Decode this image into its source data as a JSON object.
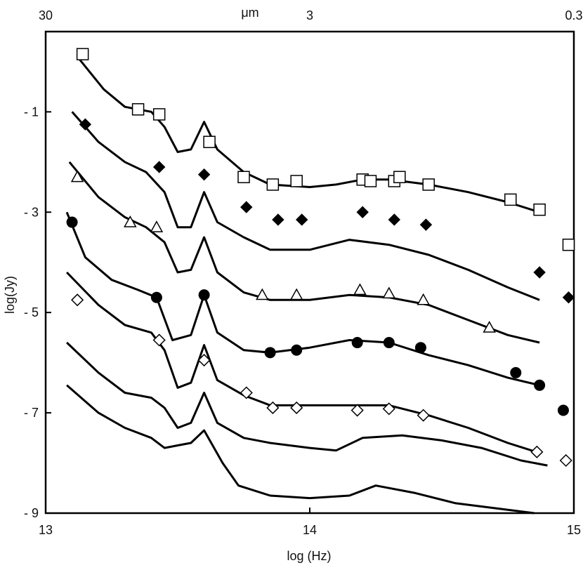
{
  "chart_data": {
    "type": "line",
    "xlabel": "log (Hz)",
    "ylabel": "log(Jy)",
    "top_axis_label": "μm",
    "xlim": [
      13,
      15
    ],
    "ylim": [
      -9.0,
      0.6
    ],
    "x_ticks": [
      13,
      14,
      15
    ],
    "y_ticks": [
      -1,
      -3,
      -5,
      -7,
      -9
    ],
    "y_tick_labels": [
      "- 1",
      "- 3",
      "- 5",
      "- 7",
      "- 9"
    ],
    "top_ticks": [
      {
        "label": "30",
        "x": 13.0
      },
      {
        "label": "3",
        "x": 14.0
      },
      {
        "label": "0.3",
        "x": 15.0
      }
    ],
    "series": [
      {
        "marker": "square",
        "curve": [
          [
            13.12,
            0.1
          ],
          [
            13.22,
            -0.55
          ],
          [
            13.3,
            -0.9
          ],
          [
            13.4,
            -1.0
          ],
          [
            13.45,
            -1.3
          ],
          [
            13.5,
            -1.8
          ],
          [
            13.55,
            -1.75
          ],
          [
            13.6,
            -1.2
          ],
          [
            13.65,
            -1.75
          ],
          [
            13.75,
            -2.2
          ],
          [
            13.85,
            -2.45
          ],
          [
            14.0,
            -2.5
          ],
          [
            14.1,
            -2.45
          ],
          [
            14.2,
            -2.35
          ],
          [
            14.3,
            -2.35
          ],
          [
            14.45,
            -2.45
          ],
          [
            14.6,
            -2.6
          ],
          [
            14.75,
            -2.8
          ],
          [
            14.87,
            -3.0
          ]
        ],
        "points": [
          [
            13.14,
            0.15
          ],
          [
            13.35,
            -0.95
          ],
          [
            13.43,
            -1.05
          ],
          [
            13.62,
            -1.6
          ],
          [
            13.75,
            -2.3
          ],
          [
            13.86,
            -2.45
          ],
          [
            13.95,
            -2.38
          ],
          [
            14.2,
            -2.35
          ],
          [
            14.23,
            -2.38
          ],
          [
            14.32,
            -2.38
          ],
          [
            14.34,
            -2.3
          ],
          [
            14.45,
            -2.45
          ],
          [
            14.76,
            -2.75
          ],
          [
            14.87,
            -2.95
          ],
          [
            14.98,
            -3.65
          ]
        ]
      },
      {
        "marker": "diamond-filled",
        "curve": [
          [
            13.1,
            -1.0
          ],
          [
            13.2,
            -1.6
          ],
          [
            13.3,
            -2.0
          ],
          [
            13.38,
            -2.2
          ],
          [
            13.45,
            -2.6
          ],
          [
            13.5,
            -3.3
          ],
          [
            13.55,
            -3.3
          ],
          [
            13.6,
            -2.6
          ],
          [
            13.65,
            -3.2
          ],
          [
            13.75,
            -3.5
          ],
          [
            13.85,
            -3.75
          ],
          [
            14.0,
            -3.75
          ],
          [
            14.15,
            -3.55
          ],
          [
            14.3,
            -3.65
          ],
          [
            14.45,
            -3.85
          ],
          [
            14.6,
            -4.15
          ],
          [
            14.75,
            -4.5
          ],
          [
            14.87,
            -4.75
          ]
        ],
        "points": [
          [
            13.15,
            -1.25
          ],
          [
            13.43,
            -2.1
          ],
          [
            13.6,
            -2.25
          ],
          [
            13.76,
            -2.9
          ],
          [
            13.88,
            -3.15
          ],
          [
            13.97,
            -3.15
          ],
          [
            14.2,
            -3.0
          ],
          [
            14.32,
            -3.15
          ],
          [
            14.44,
            -3.25
          ],
          [
            14.87,
            -4.2
          ],
          [
            14.98,
            -4.7
          ]
        ]
      },
      {
        "marker": "triangle",
        "curve": [
          [
            13.09,
            -2.0
          ],
          [
            13.2,
            -2.7
          ],
          [
            13.3,
            -3.1
          ],
          [
            13.38,
            -3.3
          ],
          [
            13.45,
            -3.6
          ],
          [
            13.5,
            -4.2
          ],
          [
            13.55,
            -4.15
          ],
          [
            13.6,
            -3.5
          ],
          [
            13.65,
            -4.2
          ],
          [
            13.75,
            -4.6
          ],
          [
            13.85,
            -4.75
          ],
          [
            14.0,
            -4.75
          ],
          [
            14.15,
            -4.65
          ],
          [
            14.3,
            -4.7
          ],
          [
            14.45,
            -4.85
          ],
          [
            14.6,
            -5.15
          ],
          [
            14.75,
            -5.45
          ],
          [
            14.87,
            -5.6
          ]
        ],
        "points": [
          [
            13.12,
            -2.3
          ],
          [
            13.32,
            -3.2
          ],
          [
            13.42,
            -3.3
          ],
          [
            13.82,
            -4.65
          ],
          [
            13.95,
            -4.65
          ],
          [
            14.19,
            -4.55
          ],
          [
            14.3,
            -4.62
          ],
          [
            14.43,
            -4.75
          ],
          [
            14.68,
            -5.3
          ]
        ]
      },
      {
        "marker": "circle",
        "curve": [
          [
            13.08,
            -3.0
          ],
          [
            13.15,
            -3.9
          ],
          [
            13.25,
            -4.35
          ],
          [
            13.35,
            -4.55
          ],
          [
            13.42,
            -4.7
          ],
          [
            13.48,
            -5.55
          ],
          [
            13.55,
            -5.45
          ],
          [
            13.6,
            -4.65
          ],
          [
            13.65,
            -5.4
          ],
          [
            13.75,
            -5.75
          ],
          [
            13.85,
            -5.8
          ],
          [
            14.0,
            -5.7
          ],
          [
            14.15,
            -5.55
          ],
          [
            14.3,
            -5.6
          ],
          [
            14.45,
            -5.85
          ],
          [
            14.6,
            -6.05
          ],
          [
            14.75,
            -6.3
          ],
          [
            14.87,
            -6.45
          ]
        ],
        "points": [
          [
            13.1,
            -3.2
          ],
          [
            13.42,
            -4.7
          ],
          [
            13.6,
            -4.65
          ],
          [
            13.85,
            -5.8
          ],
          [
            13.95,
            -5.75
          ],
          [
            14.18,
            -5.6
          ],
          [
            14.3,
            -5.6
          ],
          [
            14.42,
            -5.7
          ],
          [
            14.78,
            -6.2
          ],
          [
            14.87,
            -6.45
          ],
          [
            14.96,
            -6.95
          ]
        ]
      },
      {
        "marker": "diamond",
        "curve": [
          [
            13.08,
            -4.2
          ],
          [
            13.2,
            -4.85
          ],
          [
            13.3,
            -5.25
          ],
          [
            13.4,
            -5.4
          ],
          [
            13.45,
            -5.75
          ],
          [
            13.5,
            -6.5
          ],
          [
            13.55,
            -6.4
          ],
          [
            13.6,
            -5.65
          ],
          [
            13.65,
            -6.35
          ],
          [
            13.75,
            -6.65
          ],
          [
            13.85,
            -6.85
          ],
          [
            14.0,
            -6.85
          ],
          [
            14.15,
            -6.85
          ],
          [
            14.3,
            -6.85
          ],
          [
            14.45,
            -7.05
          ],
          [
            14.6,
            -7.3
          ],
          [
            14.75,
            -7.6
          ],
          [
            14.87,
            -7.8
          ]
        ],
        "points": [
          [
            13.12,
            -4.75
          ],
          [
            13.43,
            -5.55
          ],
          [
            13.6,
            -5.95
          ],
          [
            13.76,
            -6.6
          ],
          [
            13.86,
            -6.9
          ],
          [
            13.95,
            -6.9
          ],
          [
            14.18,
            -6.95
          ],
          [
            14.3,
            -6.92
          ],
          [
            14.43,
            -7.05
          ],
          [
            14.86,
            -7.78
          ],
          [
            14.97,
            -7.95
          ]
        ]
      },
      {
        "marker": "none",
        "curve": [
          [
            13.08,
            -5.6
          ],
          [
            13.2,
            -6.2
          ],
          [
            13.3,
            -6.6
          ],
          [
            13.4,
            -6.7
          ],
          [
            13.45,
            -6.9
          ],
          [
            13.5,
            -7.3
          ],
          [
            13.55,
            -7.2
          ],
          [
            13.6,
            -6.6
          ],
          [
            13.65,
            -7.2
          ],
          [
            13.75,
            -7.5
          ],
          [
            13.85,
            -7.6
          ],
          [
            14.0,
            -7.7
          ],
          [
            14.1,
            -7.75
          ],
          [
            14.2,
            -7.5
          ],
          [
            14.35,
            -7.45
          ],
          [
            14.5,
            -7.55
          ],
          [
            14.65,
            -7.7
          ],
          [
            14.8,
            -7.95
          ],
          [
            14.9,
            -8.05
          ]
        ],
        "points": []
      },
      {
        "marker": "none",
        "curve": [
          [
            13.08,
            -6.45
          ],
          [
            13.2,
            -7.0
          ],
          [
            13.3,
            -7.3
          ],
          [
            13.4,
            -7.5
          ],
          [
            13.45,
            -7.7
          ],
          [
            13.5,
            -7.65
          ],
          [
            13.55,
            -7.6
          ],
          [
            13.6,
            -7.35
          ],
          [
            13.67,
            -8.0
          ],
          [
            13.73,
            -8.45
          ],
          [
            13.85,
            -8.65
          ],
          [
            14.0,
            -8.7
          ],
          [
            14.15,
            -8.65
          ],
          [
            14.25,
            -8.45
          ],
          [
            14.4,
            -8.6
          ],
          [
            14.55,
            -8.8
          ],
          [
            14.7,
            -8.9
          ],
          [
            14.85,
            -9.0
          ]
        ],
        "points": []
      }
    ]
  }
}
